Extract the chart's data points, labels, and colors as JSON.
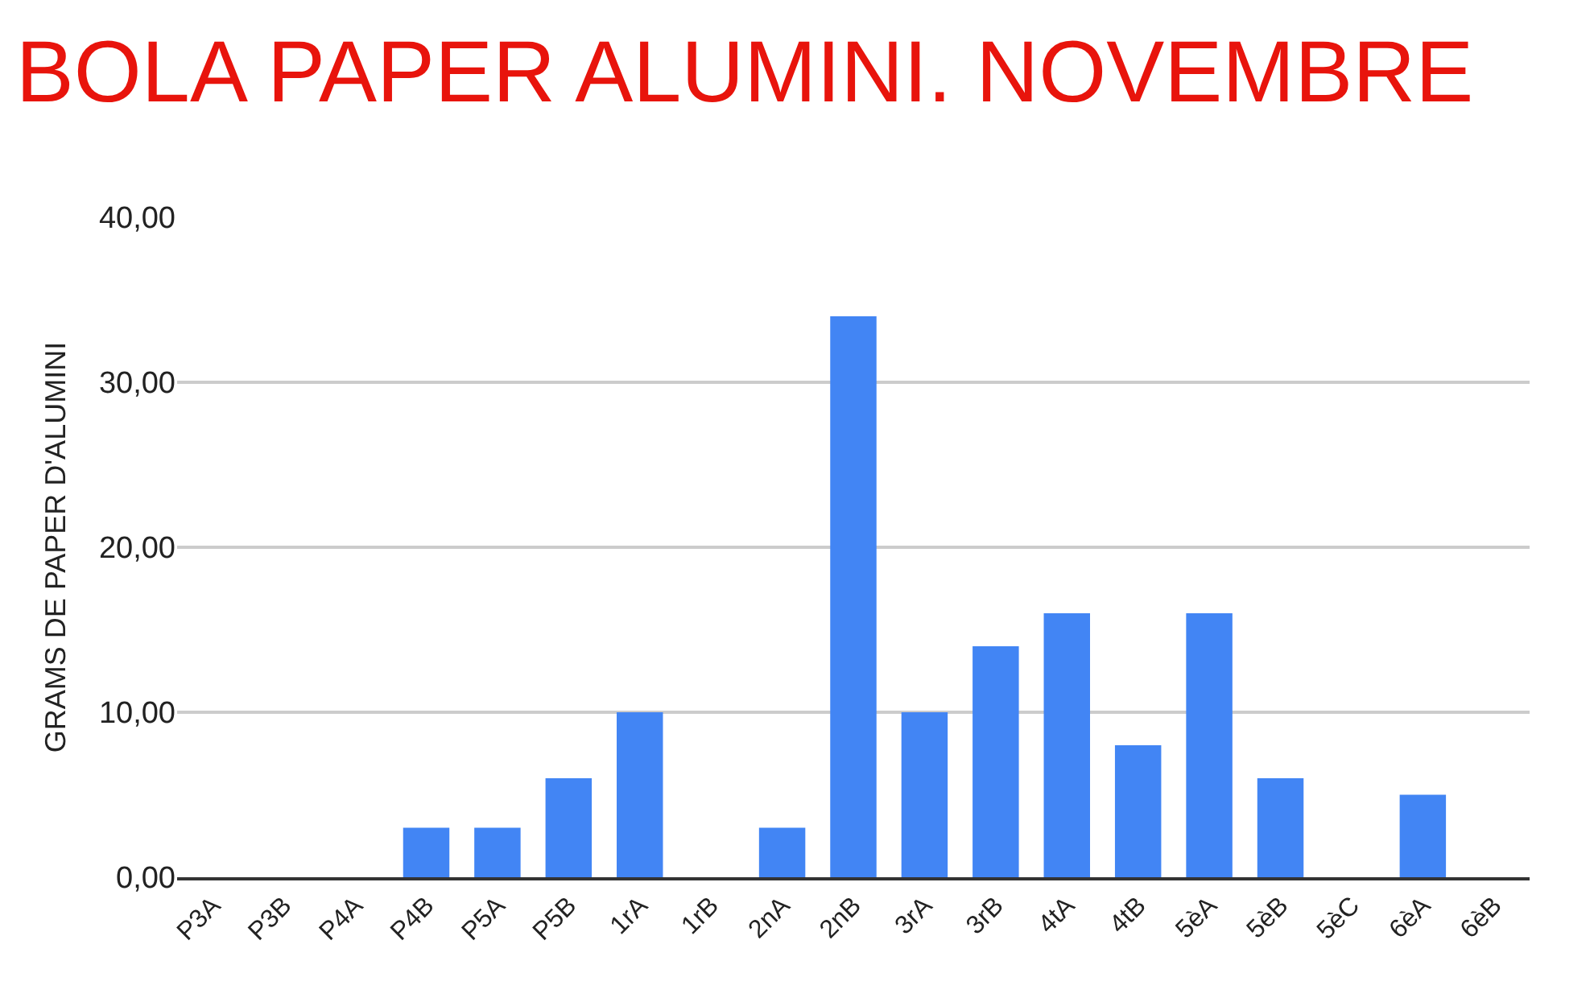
{
  "chart_data": {
    "type": "bar",
    "title": "BOLA PAPER ALUMINI. NOVEMBRE",
    "ylabel": "GRAMS DE PAPER D'ALUMINI",
    "categories": [
      "P3A",
      "P3B",
      "P4A",
      "P4B",
      "P5A",
      "P5B",
      "1rA",
      "1rB",
      "2nA",
      "2nB",
      "3rA",
      "3rB",
      "4tA",
      "4tB",
      "5èA",
      "5èB",
      "5èC",
      "6èA",
      "6èB"
    ],
    "values": [
      0,
      0,
      0,
      3,
      3,
      6,
      10,
      0,
      3,
      34,
      10,
      14,
      16,
      8,
      16,
      6,
      0,
      5,
      0
    ],
    "color": "#4285f4",
    "ylim": [
      0,
      40
    ],
    "yticks": [
      {
        "value": 0,
        "label": "0,00"
      },
      {
        "value": 10,
        "label": "10,00"
      },
      {
        "value": 20,
        "label": "20,00"
      },
      {
        "value": 30,
        "label": "30,00"
      },
      {
        "value": 40,
        "label": "40,00"
      }
    ],
    "grid": "y",
    "legend": false
  }
}
